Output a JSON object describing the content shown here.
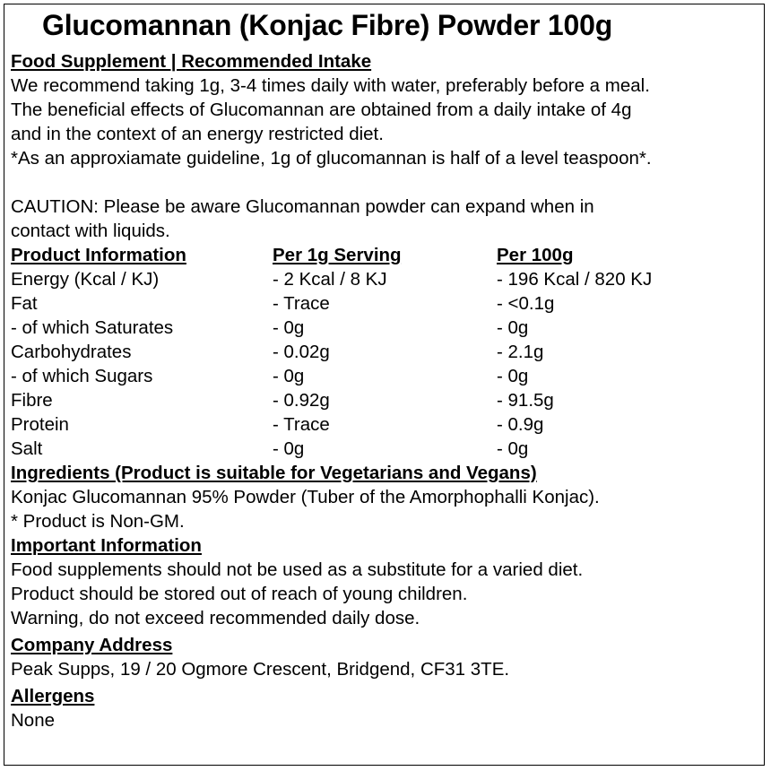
{
  "title": "Glucomannan (Konjac Fibre) Powder 100g",
  "intake": {
    "heading": "Food Supplement | Recommended Intake",
    "lines": [
      "We recommend taking 1g, 3-4 times daily with water, preferably before a meal.",
      "The beneficial effects of Glucomannan are obtained from a daily intake of 4g",
      "and in the context of an energy restricted diet.",
      "*As an approxiamate guideline, 1g of glucomannan is half of a level teaspoon*."
    ],
    "caution": [
      "CAUTION: Please be aware Glucomannan powder can expand when in",
      "contact with liquids."
    ]
  },
  "nutrition": {
    "headers": [
      "Product Information",
      "Per 1g Serving",
      "Per 100g"
    ],
    "rows": [
      [
        "Energy (Kcal / KJ)",
        "- 2 Kcal / 8 KJ",
        "- 196 Kcal / 820 KJ"
      ],
      [
        "Fat",
        "- Trace",
        "- <0.1g"
      ],
      [
        "- of which Saturates",
        "- 0g",
        "- 0g"
      ],
      [
        "Carbohydrates",
        "- 0.02g",
        "- 2.1g"
      ],
      [
        "- of which Sugars",
        "- 0g",
        "- 0g"
      ],
      [
        "Fibre",
        "- 0.92g",
        "- 91.5g"
      ],
      [
        "Protein",
        "- Trace",
        "- 0.9g"
      ],
      [
        "Salt",
        "- 0g",
        "- 0g"
      ]
    ]
  },
  "ingredients": {
    "heading": "Ingredients (Product is suitable for Vegetarians and Vegans)",
    "lines": [
      "Konjac Glucomannan 95% Powder (Tuber of the Amorphophalli Konjac).",
      "* Product is Non-GM."
    ]
  },
  "important": {
    "heading": "Important Information",
    "lines": [
      "Food supplements should not be used as a substitute for a varied diet.",
      "Product should be stored out of reach of young children.",
      "Warning, do not exceed recommended daily dose."
    ]
  },
  "company": {
    "heading": "Company Address",
    "address": "Peak Supps, 19 / 20 Ogmore Crescent, Bridgend, CF31 3TE."
  },
  "allergens": {
    "heading": "Allergens",
    "value": "None"
  }
}
